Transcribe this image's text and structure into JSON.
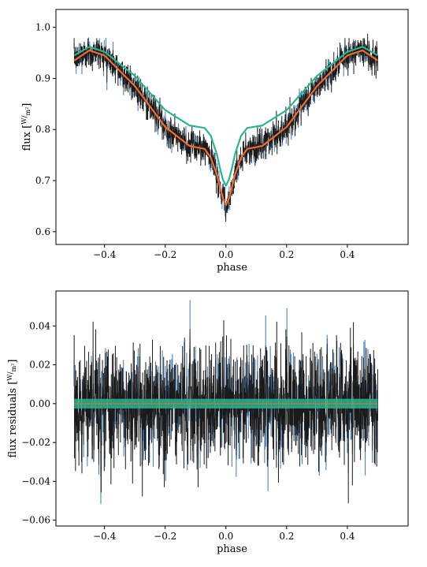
{
  "colors": {
    "observed": "#1a1a1a",
    "observed_errors": "#3a78b5",
    "model_orange": "#f26a2e",
    "model_green": "#2ab58f",
    "axes": "#000000"
  },
  "chart_data": [
    {
      "type": "line",
      "xlabel": "phase",
      "ylabel_prefix": "flux [",
      "ylabel_unit_num": "W",
      "ylabel_unit_den": "m²",
      "ylabel_suffix": "]",
      "xlim": [
        -0.56,
        0.6
      ],
      "ylim": [
        0.575,
        1.035
      ],
      "xticks": [
        -0.4,
        -0.2,
        0.0,
        0.2,
        0.4
      ],
      "xtick_labels": [
        "−0.4",
        "−0.2",
        "0.0",
        "0.2",
        "0.4"
      ],
      "yticks": [
        0.6,
        0.7,
        0.8,
        0.9,
        1.0
      ],
      "ytick_labels": [
        "0.6",
        "0.7",
        "0.8",
        "0.9",
        "1.0"
      ],
      "grid": false,
      "series": [
        {
          "color": "#f26a2e",
          "x": [
            -0.5,
            -0.45,
            -0.4,
            -0.3,
            -0.2,
            -0.12,
            -0.07,
            -0.05,
            -0.03,
            -0.02,
            -0.01,
            0.0,
            0.01,
            0.02,
            0.03,
            0.05,
            0.07,
            0.12,
            0.2,
            0.3,
            0.4,
            0.45,
            0.5
          ],
          "y": [
            0.935,
            0.955,
            0.945,
            0.885,
            0.805,
            0.768,
            0.762,
            0.745,
            0.712,
            0.688,
            0.665,
            0.652,
            0.665,
            0.688,
            0.712,
            0.745,
            0.762,
            0.768,
            0.805,
            0.885,
            0.945,
            0.955,
            0.935
          ]
        },
        {
          "color": "#2ab58f",
          "x": [
            -0.5,
            -0.45,
            -0.4,
            -0.3,
            -0.2,
            -0.12,
            -0.07,
            -0.05,
            -0.03,
            -0.02,
            -0.01,
            0.0,
            0.01,
            0.02,
            0.03,
            0.05,
            0.07,
            0.12,
            0.2,
            0.3,
            0.4,
            0.45,
            0.5
          ],
          "y": [
            0.945,
            0.962,
            0.952,
            0.905,
            0.838,
            0.808,
            0.803,
            0.788,
            0.752,
            0.725,
            0.702,
            0.69,
            0.702,
            0.725,
            0.752,
            0.788,
            0.803,
            0.808,
            0.838,
            0.905,
            0.952,
            0.962,
            0.945
          ]
        }
      ]
    },
    {
      "type": "line",
      "xlabel": "phase",
      "ylabel_prefix": "flux residuals [",
      "ylabel_unit_num": "W",
      "ylabel_unit_den": "m²",
      "ylabel_suffix": "]",
      "xlim": [
        -0.56,
        0.6
      ],
      "ylim": [
        -0.063,
        0.058
      ],
      "xticks": [
        -0.4,
        -0.2,
        0.0,
        0.2,
        0.4
      ],
      "xtick_labels": [
        "−0.4",
        "−0.2",
        "0.0",
        "0.2",
        "0.4"
      ],
      "yticks": [
        -0.06,
        -0.04,
        -0.02,
        0.0,
        0.02,
        0.04
      ],
      "ytick_labels": [
        "−0.06",
        "−0.04",
        "−0.02",
        "0.00",
        "0.02",
        "0.04"
      ],
      "grid": false,
      "series": [
        {
          "color": "#2ab58f",
          "x": [
            -0.5,
            0.5
          ],
          "y": [
            0.0,
            0.0
          ]
        }
      ]
    }
  ]
}
